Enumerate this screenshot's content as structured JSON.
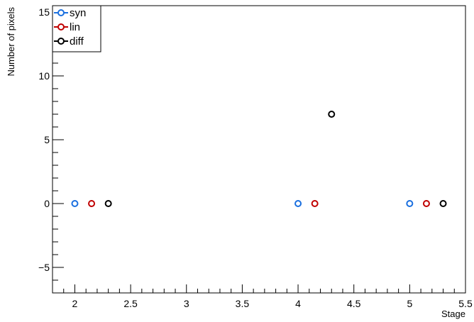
{
  "chart_data": {
    "type": "scatter",
    "title": "",
    "xlabel": "Stage",
    "ylabel": "Number of pixels",
    "xlim": [
      1.8,
      5.5
    ],
    "ylim": [
      -7,
      15.5
    ],
    "x_ticks": [
      {
        "value": 2,
        "label": "2"
      },
      {
        "value": 2.5,
        "label": "2.5"
      },
      {
        "value": 3,
        "label": "3"
      },
      {
        "value": 3.5,
        "label": "3.5"
      },
      {
        "value": 4,
        "label": "4"
      },
      {
        "value": 4.5,
        "label": "4.5"
      },
      {
        "value": 5,
        "label": "5"
      },
      {
        "value": 5.5,
        "label": "5.5"
      }
    ],
    "y_ticks": [
      {
        "value": -5,
        "label": "−5"
      },
      {
        "value": 0,
        "label": "0"
      },
      {
        "value": 5,
        "label": "5"
      },
      {
        "value": 10,
        "label": "10"
      },
      {
        "value": 15,
        "label": "15"
      }
    ],
    "grid": false,
    "legend_position": "top-left",
    "series": [
      {
        "name": "syn",
        "color": "#1a6fdf",
        "x": [
          2,
          4,
          5
        ],
        "y": [
          0,
          0,
          0
        ]
      },
      {
        "name": "lin",
        "color": "#c00000",
        "x": [
          2.15,
          4.15,
          5.15
        ],
        "y": [
          0,
          0,
          0
        ]
      },
      {
        "name": "diff",
        "color": "#000000",
        "x": [
          2.3,
          4.3,
          5.3
        ],
        "y": [
          0,
          7,
          0
        ]
      }
    ]
  }
}
